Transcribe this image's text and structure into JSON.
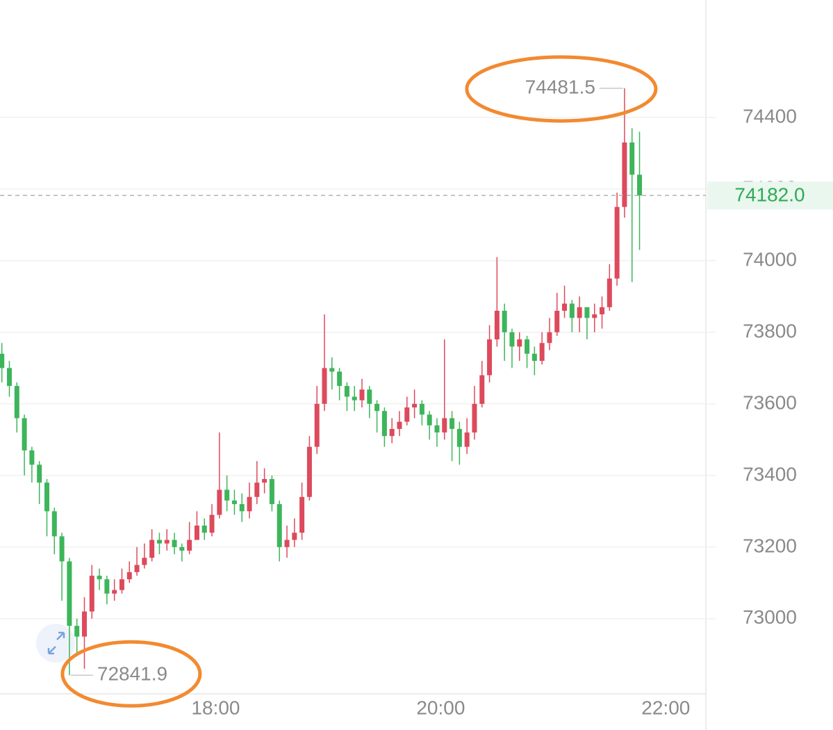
{
  "chart_data": {
    "type": "candlestick",
    "x": [
      "16:06",
      "16:10",
      "16:14",
      "16:18",
      "16:22",
      "16:26",
      "16:30",
      "16:34",
      "16:38",
      "16:42",
      "16:46",
      "16:50",
      "16:54",
      "16:58",
      "17:02",
      "17:06",
      "17:10",
      "17:14",
      "17:18",
      "17:22",
      "17:26",
      "17:30",
      "17:34",
      "17:38",
      "17:42",
      "17:46",
      "17:50",
      "17:54",
      "17:58",
      "18:02",
      "18:06",
      "18:10",
      "18:14",
      "18:18",
      "18:22",
      "18:26",
      "18:30",
      "18:34",
      "18:38",
      "18:42",
      "18:46",
      "18:50",
      "18:54",
      "18:58",
      "19:02",
      "19:06",
      "19:10",
      "19:14",
      "19:18",
      "19:22",
      "19:26",
      "19:30",
      "19:34",
      "19:38",
      "19:42",
      "19:46",
      "19:50",
      "19:54",
      "19:58",
      "20:02",
      "20:06",
      "20:10",
      "20:14",
      "20:18",
      "20:22",
      "20:26",
      "20:30",
      "20:34",
      "20:38",
      "20:42",
      "20:46",
      "20:50",
      "20:54",
      "20:58",
      "21:02",
      "21:06",
      "21:10",
      "21:14",
      "21:18",
      "21:22",
      "21:26",
      "21:30",
      "21:34",
      "21:38",
      "21:42",
      "21:46"
    ],
    "open": [
      73740,
      73700,
      73650,
      73560,
      73470,
      73430,
      73380,
      73300,
      73230,
      73160,
      72980,
      72950,
      73020,
      73120,
      73110,
      73070,
      73080,
      73110,
      73130,
      73150,
      73170,
      73220,
      73210,
      73220,
      73200,
      73190,
      73220,
      73260,
      73240,
      73290,
      73360,
      73330,
      73320,
      73300,
      73340,
      73380,
      73390,
      73320,
      73200,
      73220,
      73240,
      73340,
      73480,
      73600,
      73700,
      73690,
      73650,
      73620,
      73610,
      73640,
      73600,
      73580,
      73510,
      73530,
      73550,
      73590,
      73600,
      73570,
      73540,
      73520,
      73560,
      73530,
      73480,
      73520,
      73600,
      73680,
      73780,
      73860,
      73800,
      73760,
      73780,
      73740,
      73720,
      73770,
      73800,
      73860,
      73880,
      73840,
      73870,
      73840,
      73850,
      73870,
      73950,
      74150,
      74330,
      74240
    ],
    "high": [
      73770,
      73720,
      73660,
      73570,
      73480,
      73440,
      73390,
      73310,
      73240,
      73170,
      73000,
      73060,
      73150,
      73140,
      73120,
      73110,
      73140,
      73160,
      73200,
      73210,
      73250,
      73240,
      73250,
      73240,
      73210,
      73270,
      73300,
      73280,
      73320,
      73520,
      73400,
      73360,
      73350,
      73380,
      73440,
      73420,
      73400,
      73330,
      73260,
      73280,
      73380,
      73510,
      73650,
      73850,
      73730,
      73700,
      73660,
      73650,
      73670,
      73650,
      73610,
      73590,
      73560,
      73580,
      73620,
      73640,
      73610,
      73580,
      73560,
      73780,
      73580,
      73550,
      73560,
      73650,
      73720,
      73820,
      74010,
      73880,
      73810,
      73800,
      73790,
      73760,
      73800,
      73840,
      73910,
      73930,
      73890,
      73900,
      73870,
      73880,
      73900,
      73990,
      74190,
      74481.5,
      74370,
      74360
    ],
    "low": [
      73660,
      73620,
      73520,
      73400,
      73380,
      73320,
      73230,
      73180,
      73050,
      72841.9,
      72900,
      72860,
      73000,
      73080,
      73040,
      73050,
      73070,
      73100,
      73120,
      73140,
      73160,
      73180,
      73190,
      73180,
      73160,
      73180,
      73220,
      73220,
      73230,
      73280,
      73300,
      73290,
      73270,
      73280,
      73320,
      73350,
      73300,
      73160,
      73170,
      73200,
      73220,
      73330,
      73460,
      73580,
      73640,
      73610,
      73580,
      73580,
      73590,
      73560,
      73520,
      73480,
      73490,
      73510,
      73540,
      73560,
      73540,
      73500,
      73480,
      73500,
      73440,
      73430,
      73460,
      73500,
      73590,
      73660,
      73760,
      73720,
      73700,
      73720,
      73700,
      73680,
      73710,
      73750,
      73790,
      73840,
      73800,
      73800,
      73780,
      73800,
      73810,
      73860,
      73930,
      74120,
      73940,
      74030
    ],
    "close": [
      73700,
      73650,
      73560,
      73470,
      73430,
      73380,
      73300,
      73230,
      73160,
      72980,
      72950,
      73020,
      73120,
      73110,
      73070,
      73080,
      73110,
      73130,
      73150,
      73170,
      73220,
      73210,
      73220,
      73200,
      73190,
      73220,
      73260,
      73240,
      73290,
      73360,
      73330,
      73320,
      73300,
      73340,
      73380,
      73390,
      73320,
      73200,
      73220,
      73240,
      73340,
      73480,
      73600,
      73700,
      73690,
      73650,
      73620,
      73610,
      73640,
      73600,
      73580,
      73510,
      73530,
      73550,
      73590,
      73600,
      73570,
      73540,
      73520,
      73560,
      73530,
      73480,
      73520,
      73600,
      73680,
      73780,
      73860,
      73800,
      73760,
      73780,
      73740,
      73720,
      73770,
      73800,
      73860,
      73880,
      73840,
      73870,
      73840,
      73850,
      73870,
      73950,
      74150,
      74330,
      74240,
      74182
    ],
    "up_color": "#dc4a5c",
    "down_color": "#3db55b",
    "last_price": {
      "value": 74182,
      "label": "74182.0"
    },
    "last_price_color": "#2eaa55",
    "xlim": [
      "16:05",
      "22:21"
    ],
    "xticks": [
      "18:00",
      "20:00",
      "22:00"
    ],
    "ylim": [
      72790,
      74728
    ],
    "yticks": [
      73000,
      73200,
      73400,
      73600,
      73800,
      74000,
      74200,
      74400
    ],
    "grid": true
  }
}
